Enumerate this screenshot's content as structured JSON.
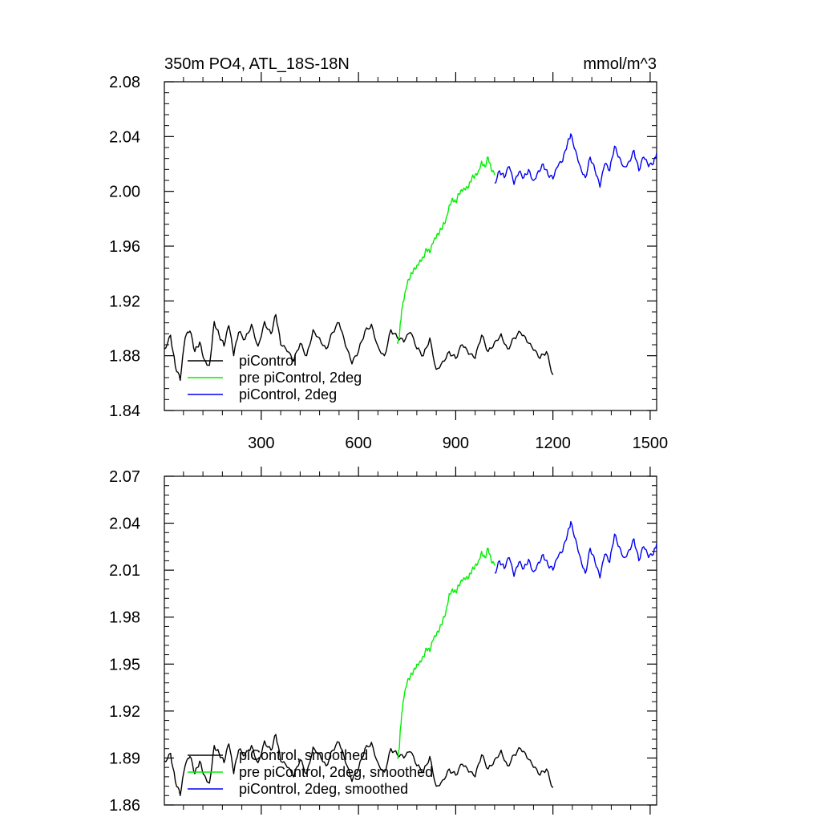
{
  "chart_data": [
    {
      "type": "line",
      "title": "350m PO4, ATL_18S-18N",
      "title_right": "mmol/m^3",
      "xlim": [
        1,
        1520
      ],
      "ylim": [
        1.84,
        2.08
      ],
      "xticks": [
        300,
        600,
        900,
        1200,
        1500
      ],
      "xtick_labels": [
        "300",
        "600",
        "900",
        "1200",
        "1500"
      ],
      "yticks": [
        1.84,
        1.88,
        1.92,
        1.96,
        2.0,
        2.04,
        2.08
      ],
      "ytick_labels": [
        "1.84",
        "1.88",
        "1.92",
        "1.96",
        "2.00",
        "2.04",
        "2.08"
      ],
      "grid": false,
      "legend_position": "bottom-left",
      "series": [
        {
          "name": "piControl",
          "color": "#000000",
          "x": [
            1,
            20,
            35,
            50,
            65,
            80,
            95,
            110,
            125,
            140,
            155,
            170,
            185,
            200,
            215,
            230,
            250,
            270,
            290,
            310,
            330,
            345,
            360,
            380,
            400,
            420,
            440,
            460,
            480,
            500,
            520,
            540,
            560,
            580,
            600,
            620,
            640,
            660,
            680,
            700,
            720,
            740,
            760,
            780,
            800,
            820,
            840,
            860,
            880,
            900,
            920,
            940,
            960,
            980,
            1000,
            1020,
            1040,
            1060,
            1080,
            1100,
            1120,
            1140,
            1160,
            1180,
            1200
          ],
          "values": [
            1.885,
            1.895,
            1.872,
            1.862,
            1.893,
            1.898,
            1.883,
            1.89,
            1.877,
            1.873,
            1.905,
            1.895,
            1.887,
            1.902,
            1.88,
            1.897,
            1.892,
            1.903,
            1.887,
            1.905,
            1.896,
            1.91,
            1.888,
            1.883,
            1.876,
            1.889,
            1.88,
            1.899,
            1.893,
            1.885,
            1.897,
            1.904,
            1.887,
            1.874,
            1.883,
            1.898,
            1.903,
            1.887,
            1.88,
            1.899,
            1.893,
            1.89,
            1.897,
            1.885,
            1.88,
            1.893,
            1.87,
            1.876,
            1.883,
            1.878,
            1.888,
            1.881,
            1.878,
            1.895,
            1.883,
            1.89,
            1.896,
            1.885,
            1.893,
            1.897,
            1.89,
            1.884,
            1.878,
            1.883,
            1.866
          ]
        },
        {
          "name": "pre piControl, 2deg",
          "color": "#00ee00",
          "x": [
            720,
            725,
            730,
            735,
            740,
            750,
            760,
            770,
            780,
            790,
            800,
            810,
            820,
            830,
            840,
            850,
            860,
            870,
            880,
            890,
            900,
            910,
            920,
            930,
            940,
            950,
            960,
            970,
            980,
            990,
            1000,
            1010,
            1020
          ],
          "values": [
            1.89,
            1.893,
            1.905,
            1.915,
            1.92,
            1.932,
            1.938,
            1.943,
            1.946,
            1.95,
            1.952,
            1.958,
            1.955,
            1.962,
            1.966,
            1.97,
            1.975,
            1.98,
            1.99,
            1.995,
            1.992,
            1.998,
            2.0,
            2.001,
            2.003,
            2.01,
            2.012,
            2.015,
            2.022,
            2.018,
            2.025,
            2.015,
            2.012
          ]
        },
        {
          "name": "piControl, 2deg",
          "color": "#0000ee",
          "x": [
            1020,
            1035,
            1050,
            1065,
            1080,
            1095,
            1110,
            1125,
            1140,
            1155,
            1170,
            1185,
            1200,
            1215,
            1230,
            1245,
            1255,
            1270,
            1285,
            1300,
            1315,
            1330,
            1345,
            1360,
            1375,
            1390,
            1405,
            1420,
            1435,
            1450,
            1465,
            1480,
            1495,
            1510,
            1520
          ],
          "values": [
            2.006,
            2.015,
            2.01,
            2.018,
            2.005,
            2.014,
            2.01,
            2.016,
            2.008,
            2.015,
            2.02,
            2.012,
            2.009,
            2.018,
            2.022,
            2.035,
            2.042,
            2.03,
            2.018,
            2.01,
            2.025,
            2.015,
            2.003,
            2.02,
            2.015,
            2.033,
            2.025,
            2.018,
            2.022,
            2.03,
            2.015,
            2.025,
            2.018,
            2.02,
            2.028
          ]
        }
      ]
    },
    {
      "type": "line",
      "xlim": [
        1,
        1520
      ],
      "ylim": [
        1.86,
        2.07
      ],
      "xticks": [
        300,
        600,
        900,
        1200,
        1500
      ],
      "yticks": [
        1.86,
        1.89,
        1.92,
        1.95,
        1.98,
        2.01,
        2.04,
        2.07
      ],
      "ytick_labels": [
        "1.86",
        "1.89",
        "1.92",
        "1.95",
        "1.98",
        "2.01",
        "2.04",
        "2.07"
      ],
      "grid": false,
      "legend_position": "bottom-left",
      "series": [
        {
          "name": "piControl, smoothed",
          "color": "#000000",
          "x": [
            1,
            20,
            35,
            50,
            65,
            80,
            95,
            110,
            125,
            140,
            155,
            170,
            185,
            200,
            215,
            230,
            250,
            270,
            290,
            310,
            330,
            345,
            360,
            380,
            400,
            420,
            440,
            460,
            480,
            500,
            520,
            540,
            560,
            580,
            600,
            620,
            640,
            660,
            680,
            700,
            720,
            740,
            760,
            780,
            800,
            820,
            840,
            860,
            880,
            900,
            920,
            940,
            960,
            980,
            1000,
            1020,
            1040,
            1060,
            1080,
            1100,
            1120,
            1140,
            1160,
            1180,
            1200
          ],
          "values": [
            1.888,
            1.893,
            1.875,
            1.866,
            1.885,
            1.891,
            1.88,
            1.888,
            1.879,
            1.874,
            1.898,
            1.893,
            1.887,
            1.899,
            1.88,
            1.895,
            1.892,
            1.898,
            1.887,
            1.901,
            1.895,
            1.905,
            1.888,
            1.884,
            1.878,
            1.889,
            1.88,
            1.897,
            1.893,
            1.885,
            1.895,
            1.9,
            1.887,
            1.875,
            1.883,
            1.896,
            1.9,
            1.887,
            1.881,
            1.896,
            1.892,
            1.89,
            1.894,
            1.885,
            1.881,
            1.891,
            1.872,
            1.876,
            1.883,
            1.879,
            1.886,
            1.881,
            1.878,
            1.892,
            1.883,
            1.889,
            1.895,
            1.885,
            1.892,
            1.896,
            1.89,
            1.884,
            1.879,
            1.883,
            1.871
          ]
        },
        {
          "name": "pre piControl, 2deg, smoothed",
          "color": "#00ee00",
          "x": [
            720,
            725,
            730,
            735,
            740,
            750,
            760,
            770,
            780,
            790,
            800,
            810,
            820,
            830,
            840,
            850,
            860,
            870,
            880,
            890,
            900,
            910,
            920,
            930,
            940,
            950,
            960,
            970,
            980,
            990,
            1000,
            1010,
            1020
          ],
          "values": [
            1.89,
            1.895,
            1.91,
            1.92,
            1.928,
            1.938,
            1.942,
            1.946,
            1.95,
            1.952,
            1.955,
            1.96,
            1.958,
            1.965,
            1.968,
            1.972,
            1.978,
            1.984,
            1.995,
            1.998,
            1.996,
            2.0,
            2.003,
            2.004,
            2.005,
            2.01,
            2.013,
            2.016,
            2.022,
            2.018,
            2.024,
            2.015,
            2.013
          ]
        },
        {
          "name": "piControl, 2deg, smoothed",
          "color": "#0000ee",
          "x": [
            1020,
            1035,
            1050,
            1065,
            1080,
            1095,
            1110,
            1125,
            1140,
            1155,
            1170,
            1185,
            1200,
            1215,
            1230,
            1245,
            1255,
            1270,
            1285,
            1300,
            1315,
            1330,
            1345,
            1360,
            1375,
            1390,
            1405,
            1420,
            1435,
            1450,
            1465,
            1480,
            1495,
            1510,
            1520
          ],
          "values": [
            2.008,
            2.016,
            2.011,
            2.018,
            2.006,
            2.015,
            2.011,
            2.017,
            2.009,
            2.015,
            2.02,
            2.013,
            2.01,
            2.018,
            2.022,
            2.033,
            2.041,
            2.03,
            2.018,
            2.008,
            2.024,
            2.015,
            2.005,
            2.02,
            2.015,
            2.033,
            2.025,
            2.018,
            2.023,
            2.03,
            2.016,
            2.025,
            2.018,
            2.02,
            2.027
          ]
        }
      ]
    }
  ]
}
